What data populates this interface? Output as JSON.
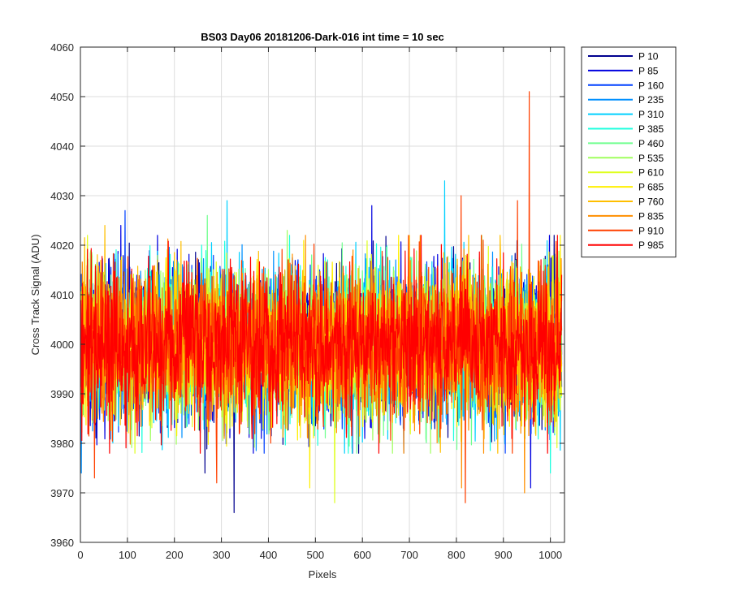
{
  "chart_data": {
    "type": "line",
    "title": "BS03 Day06 20181206-Dark-016 int time = 10 sec",
    "xlabel": "Pixels",
    "ylabel": "Cross Track Signal (ADU)",
    "xlim": [
      0,
      1030
    ],
    "ylim": [
      3960,
      4060
    ],
    "xticks": [
      0,
      100,
      200,
      300,
      400,
      500,
      600,
      700,
      800,
      900,
      1000
    ],
    "yticks": [
      3960,
      3970,
      3980,
      3990,
      4000,
      4010,
      4020,
      4030,
      4040,
      4050,
      4060
    ],
    "grid": true,
    "legend_position": "outside-top-right",
    "x_range": [
      1,
      1024
    ],
    "series": [
      {
        "name": "P 10",
        "color": "#00008f",
        "mean": 4000,
        "spread": 7.5,
        "seed": 11,
        "spikes": [
          [
            327,
            3966
          ],
          [
            265,
            3974
          ]
        ]
      },
      {
        "name": "P 85",
        "color": "#0000e0",
        "mean": 4000,
        "spread": 7.5,
        "seed": 23,
        "spikes": [
          [
            86,
            4024
          ],
          [
            620,
            4028
          ],
          [
            958,
            3971
          ]
        ]
      },
      {
        "name": "P 160",
        "color": "#0040ff",
        "mean": 4000,
        "spread": 7.5,
        "seed": 37,
        "spikes": [
          [
            95,
            4027
          ]
        ]
      },
      {
        "name": "P 235",
        "color": "#0090ff",
        "mean": 4000,
        "spread": 7.5,
        "seed": 41,
        "spikes": [
          [
            2,
            3974
          ]
        ]
      },
      {
        "name": "P 310",
        "color": "#00d0ff",
        "mean": 4000,
        "spread": 7.5,
        "seed": 53,
        "spikes": [
          [
            775,
            4033
          ],
          [
            312,
            4029
          ]
        ]
      },
      {
        "name": "P 385",
        "color": "#20ffdf",
        "mean": 4000,
        "spread": 7.5,
        "seed": 67,
        "spikes": [
          [
            1000,
            3974
          ]
        ]
      },
      {
        "name": "P 460",
        "color": "#70ff8f",
        "mean": 4000,
        "spread": 7.5,
        "seed": 71,
        "spikes": [
          [
            270,
            4026
          ]
        ]
      },
      {
        "name": "P 535",
        "color": "#a0ff5f",
        "mean": 4000,
        "spread": 7.5,
        "seed": 83,
        "spikes": [
          [
            440,
            4023
          ]
        ]
      },
      {
        "name": "P 610",
        "color": "#dfff20",
        "mean": 4000,
        "spread": 7.5,
        "seed": 97,
        "spikes": [
          [
            541,
            3968
          ]
        ]
      },
      {
        "name": "P 685",
        "color": "#ffef00",
        "mean": 4000,
        "spread": 7.5,
        "seed": 101,
        "spikes": [
          [
            488,
            3971
          ]
        ]
      },
      {
        "name": "P 760",
        "color": "#ffbf00",
        "mean": 4000,
        "spread": 7.5,
        "seed": 113,
        "spikes": [
          [
            52,
            4024
          ]
        ]
      },
      {
        "name": "P 835",
        "color": "#ff8f00",
        "mean": 4000,
        "spread": 7.5,
        "seed": 127,
        "spikes": [
          [
            811,
            3971
          ],
          [
            945,
            3970
          ]
        ]
      },
      {
        "name": "P 910",
        "color": "#ff4000",
        "mean": 4000,
        "spread": 7.5,
        "seed": 131,
        "spikes": [
          [
            955,
            4051
          ],
          [
            810,
            4030
          ],
          [
            930,
            4029
          ],
          [
            819,
            3968
          ],
          [
            290,
            3972
          ],
          [
            30,
            3973
          ]
        ]
      },
      {
        "name": "P 985",
        "color": "#ff0000",
        "mean": 4000,
        "spread": 7.5,
        "seed": 139,
        "spikes": [
          [
            725,
            4022
          ],
          [
            1015,
            4022
          ]
        ]
      }
    ]
  }
}
